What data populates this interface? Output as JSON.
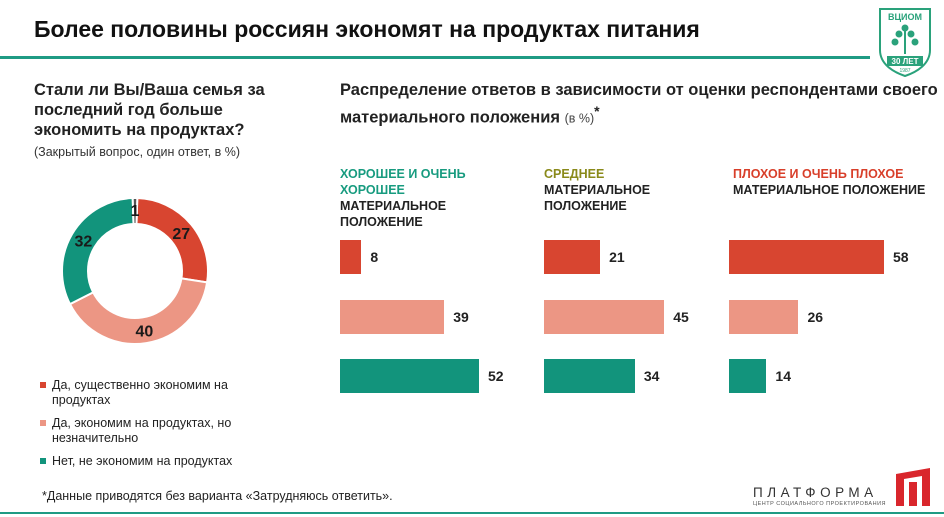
{
  "title": "Более половины россиян экономят на продуктах питания",
  "logo": {
    "top_text": "ВЦИОМ",
    "years": "30 ЛЕТ",
    "since": "1987"
  },
  "left": {
    "question": "Стали ли Вы/Ваша семья за последний год больше экономить на продуктах?",
    "subtitle": "(Закрытый вопрос, один ответ, в %)"
  },
  "right": {
    "question": "Распределение ответов в зависимости от оценки респондентами своего материального положения",
    "unit": "(в %)",
    "asterisk": "*"
  },
  "groups": [
    {
      "accent": "ХОРОШЕЕ И ОЧЕНЬ ХОРОШЕЕ",
      "rest": "МАТЕРИАЛЬНОЕ ПОЛОЖЕНИЕ",
      "color": "#179b7f"
    },
    {
      "accent": "СРЕДНЕЕ",
      "rest": "МАТЕРИАЛЬНОЕ ПОЛОЖЕНИЕ",
      "color": "#8a8a1a"
    },
    {
      "accent": "ПЛОХОЕ И ОЧЕНЬ ПЛОХОЕ",
      "rest": "МАТЕРИАЛЬНОЕ ПОЛОЖЕНИЕ",
      "color": "#d83f2a"
    }
  ],
  "legend": [
    {
      "label": "Да, существенно экономим на продуктах",
      "color": "#d84530"
    },
    {
      "label": "Да, экономим на продуктах, но незначительно",
      "color": "#ec9684"
    },
    {
      "label": "Нет, не экономим на продуктах",
      "color": "#12947c"
    }
  ],
  "footnote": "*Данные приводятся без варианта «Затрудняюсь ответить».",
  "brand": {
    "name": "ПЛАТФОРМА",
    "tagline": "ЦЕНТР СОЦИАЛЬНОГО ПРОЕКТИРОВАНИЯ"
  },
  "chart_data": [
    {
      "type": "pie",
      "categories": [
        "Да, существенно экономим на продуктах",
        "Да, экономим на продуктах, но незначительно",
        "Нет, не экономим на продуктах",
        ""
      ],
      "values": [
        27,
        40,
        32,
        1
      ],
      "colors": [
        "#d84530",
        "#ec9684",
        "#12947c",
        "#555555"
      ]
    },
    {
      "type": "bar",
      "orientation": "horizontal",
      "categories": [
        "ХОРОШЕЕ И ОЧЕНЬ ХОРОШЕЕ МАТЕРИАЛЬНОЕ ПОЛОЖЕНИЕ",
        "СРЕДНЕЕ МАТЕРИАЛЬНОЕ ПОЛОЖЕНИЕ",
        "ПЛОХОЕ И ОЧЕНЬ ПЛОХОЕ МАТЕРИАЛЬНОЕ ПОЛОЖЕНИЕ"
      ],
      "series": [
        {
          "name": "Да, существенно экономим на продуктах",
          "values": [
            8,
            21,
            58
          ],
          "color": "#d84530"
        },
        {
          "name": "Да, экономим на продуктах, но незначительно",
          "values": [
            39,
            45,
            26
          ],
          "color": "#ec9684"
        },
        {
          "name": "Нет, не экономим на продуктах",
          "values": [
            52,
            34,
            14
          ],
          "color": "#12947c"
        }
      ],
      "xlim": [
        0,
        60
      ]
    }
  ]
}
